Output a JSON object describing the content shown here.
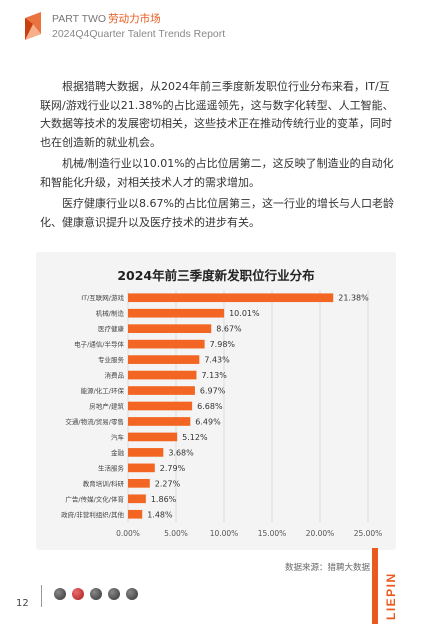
{
  "header": {
    "line1_en": "PART TWO",
    "line1_zh": "劳动力市场",
    "line2": "2024Q4Quarter Talent Trends Report"
  },
  "paragraphs": [
    "根据猎聘大数据，从2024年前三季度新发职位行业分布来看，IT/互联网/游戏行业以21.38%的占比遥遥领先，这与数字化转型、人工智能、大数据等技术的发展密切相关，这些技术正在推动传统行业的变革，同时也在创造新的就业机会。",
    "机械/制造行业以10.01%的占比位居第二，这反映了制造业的自动化和智能化升级，对相关技术人才的需求增加。",
    "医疗健康行业以8.67%的占比位居第三，这一行业的增长与人口老龄化、健康意识提升以及医疗技术的进步有关。"
  ],
  "chart_data": {
    "type": "bar",
    "orientation": "horizontal",
    "title": "2024年前三季度新发职位行业分布",
    "categories": [
      "IT/互联网/游戏",
      "机械/制造",
      "医疗健康",
      "电子/通信/半导体",
      "专业服务",
      "消费品",
      "能源/化工/环保",
      "房地产/建筑",
      "交通/物流/贸易/零售",
      "汽车",
      "金融",
      "生活服务",
      "教育培训/科研",
      "广告/传媒/文化/体育",
      "政府/非营利组织/其他"
    ],
    "values": [
      21.38,
      10.01,
      8.67,
      7.98,
      7.43,
      7.13,
      6.97,
      6.68,
      6.49,
      5.12,
      3.68,
      2.79,
      2.27,
      1.86,
      1.48
    ],
    "value_labels": [
      "21.38%",
      "10.01%",
      "8.67%",
      "7.98%",
      "7.43%",
      "7.13%",
      "6.97%",
      "6.68%",
      "6.49%",
      "5.12%",
      "3.68%",
      "2.79%",
      "2.27%",
      "1.86%",
      "1.48%"
    ],
    "xlim": [
      0,
      25
    ],
    "x_ticks": [
      0,
      5,
      10,
      15,
      20,
      25
    ],
    "x_tick_labels": [
      "0.00%",
      "5.00%",
      "10.00%",
      "15.00%",
      "20.00%",
      "25.00%"
    ],
    "grid": true,
    "bar_color": "#f26522"
  },
  "source": "数据来源：猎聘大数据",
  "brand_vertical": "LIEPIN",
  "page_number": "12",
  "colors": {
    "accent": "#e85a1e"
  }
}
